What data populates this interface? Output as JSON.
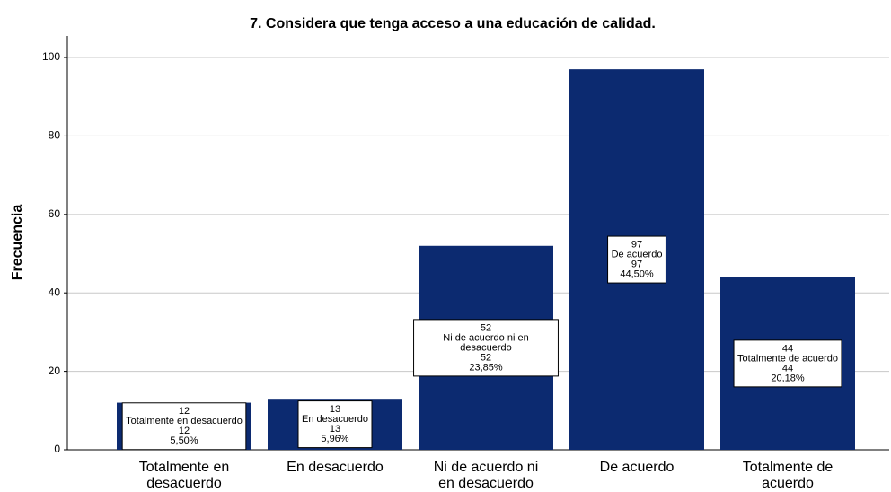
{
  "chart_data": {
    "type": "bar",
    "title": "7. Considera  que tenga acceso a una educación de calidad.",
    "y_label": "Frecuencia",
    "categories": [
      "Totalmente en desacuerdo",
      "En desacuerdo",
      "Ni de acuerdo ni en desacuerdo",
      "De acuerdo",
      "Totalmente de acuerdo"
    ],
    "values": [
      12,
      13,
      52,
      97,
      44
    ],
    "percentages": [
      5.5,
      5.96,
      23.85,
      44.5,
      20.18
    ],
    "percentage_labels": [
      "5,50%",
      "5,96%",
      "23,85%",
      "44,50%",
      "20,18%"
    ],
    "color": "#0c2a70",
    "ylim": [
      0,
      105.5
    ],
    "yticks": [
      0,
      20,
      40,
      60,
      80,
      100
    ],
    "grid": true
  }
}
